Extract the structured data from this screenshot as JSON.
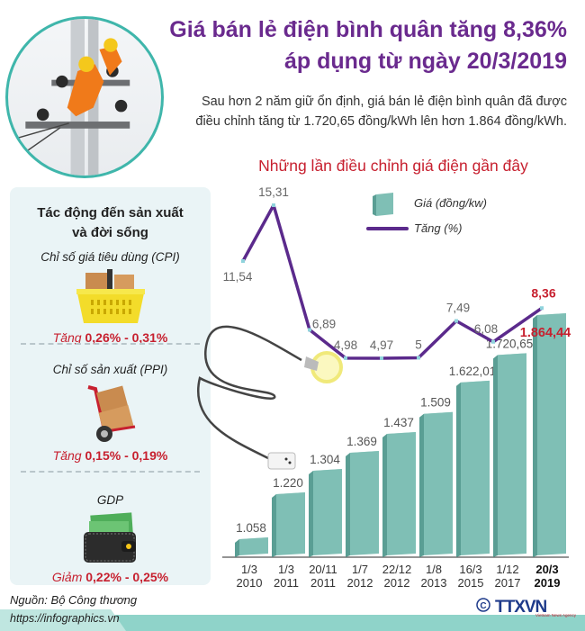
{
  "header": {
    "title_line1": "Giá bán lẻ điện bình quân tăng 8,36%",
    "title_line2": "áp dụng từ ngày 20/3/2019",
    "subtitle_line1": "Sau hơn 2 năm giữ ổn định, giá bán lẻ điện bình quân đã được",
    "subtitle_line2": "điều chỉnh tăng từ 1.720,65 đồng/kWh lên hơn 1.864 đồng/kWh."
  },
  "impact": {
    "title_line1": "Tác động đến sản xuất",
    "title_line2": "và đời sống",
    "items": [
      {
        "label": "Chỉ số giá tiêu dùng (CPI)",
        "direction": "Tăng",
        "range": "0,26% - 0,31%",
        "icon": "shopping-basket-icon"
      },
      {
        "label": "Chỉ số sản xuất (PPI)",
        "direction": "Tăng",
        "range": "0,15% - 0,19%",
        "icon": "hand-truck-icon"
      },
      {
        "label": "GDP",
        "direction": "Giảm",
        "range": "0,22% - 0,25%",
        "icon": "wallet-icon"
      }
    ]
  },
  "footer": {
    "source": "Nguồn: Bộ Công thương",
    "url": "https://infographics.vn",
    "logo": "TTXVN",
    "logo_sub": "Vietnam News Agency"
  },
  "colors": {
    "title_purple": "#6a2a8e",
    "accent_red": "#c7202f",
    "bar_teal": "#7fbfb5",
    "line_purple": "#5b2a8c",
    "panel_bg": "#eaf4f6",
    "footer_teal": "#8fd3c9"
  },
  "chart_data": {
    "type": "bar",
    "title": "Những lần điều chỉnh giá điện gần đây",
    "categories": [
      "1/3 2010",
      "1/3 2011",
      "20/11 2011",
      "1/7 2012",
      "22/12 2012",
      "1/8 2013",
      "16/3 2015",
      "1/12 2017",
      "20/3 2019"
    ],
    "category_lines": [
      [
        "1/3",
        "2010"
      ],
      [
        "1/3",
        "2011"
      ],
      [
        "20/11",
        "2011"
      ],
      [
        "1/7",
        "2012"
      ],
      [
        "22/12",
        "2012"
      ],
      [
        "1/8",
        "2013"
      ],
      [
        "16/3",
        "2015"
      ],
      [
        "1/12",
        "2017"
      ],
      [
        "20/3",
        "2019"
      ]
    ],
    "series": [
      {
        "name": "Giá (đồng/kw)",
        "type": "bar",
        "values": [
          1058,
          1220,
          1304,
          1369,
          1437,
          1509,
          1622.01,
          1720.65,
          1864.44
        ],
        "labels": [
          "1.058",
          "1.220",
          "1.304",
          "1.369",
          "1.437",
          "1.509",
          "1.622,01",
          "1.720,65",
          "1.864,44"
        ]
      },
      {
        "name": "Tăng (%)",
        "type": "line",
        "values": [
          11.54,
          15.31,
          6.89,
          4.98,
          4.97,
          5,
          7.49,
          6.08,
          8.36
        ],
        "labels": [
          "11,54",
          "15,31",
          "6,89",
          "4,98",
          "4,97",
          "5",
          "7,49",
          "6,08",
          "8,36"
        ]
      }
    ],
    "legend": [
      "Giá (đồng/kw)",
      "Tăng (%)"
    ],
    "legend_position": "top-right",
    "highlight_index": 8,
    "grid": false,
    "xlabel": "",
    "ylabel": ""
  }
}
